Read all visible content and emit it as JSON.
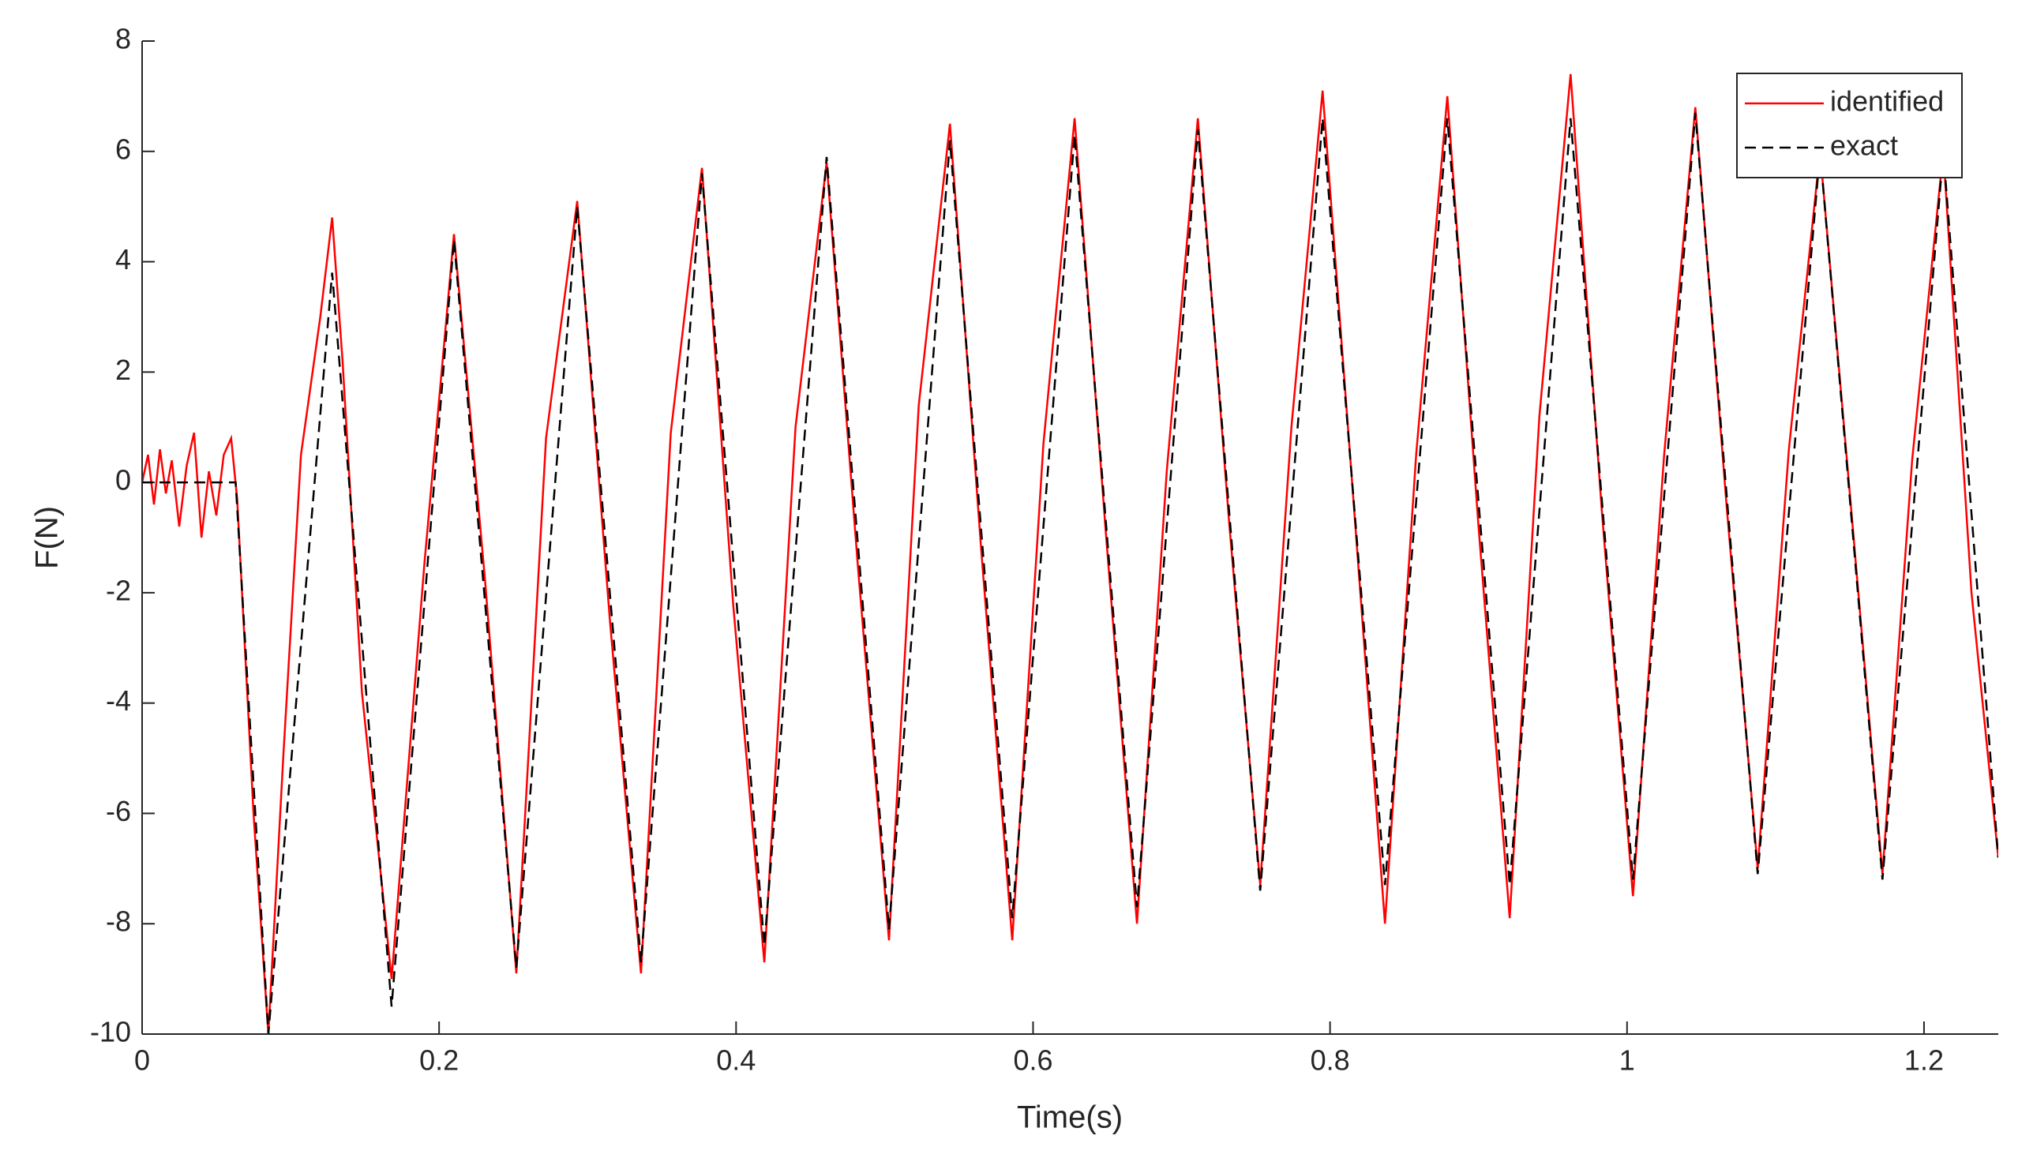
{
  "chart_data": {
    "type": "line",
    "xlabel": "Time(s)",
    "ylabel": "F(N)",
    "xlim": [
      0,
      1.25
    ],
    "xticks": [
      0,
      0.2,
      0.4,
      0.6,
      0.8,
      1,
      1.2
    ],
    "ylim": [
      -10,
      8
    ],
    "yticks": [
      -10,
      -8,
      -6,
      -4,
      -2,
      0,
      2,
      4,
      6,
      8
    ],
    "grid": false,
    "legend": "upper right",
    "series": [
      {
        "name": "identified",
        "color": "#ff0000",
        "dash": "solid",
        "x": [
          0,
          0.004,
          0.008,
          0.012,
          0.016,
          0.02,
          0.025,
          0.03,
          0.035,
          0.04,
          0.045,
          0.05,
          0.055,
          0.06,
          0.064,
          0.075,
          0.085,
          0.095,
          0.107,
          0.12,
          0.128,
          0.135,
          0.148,
          0.168,
          0.19,
          0.21,
          0.231,
          0.252,
          0.272,
          0.293,
          0.315,
          0.336,
          0.356,
          0.377,
          0.398,
          0.419,
          0.44,
          0.461,
          0.482,
          0.503,
          0.523,
          0.544,
          0.565,
          0.586,
          0.607,
          0.628,
          0.649,
          0.67,
          0.69,
          0.711,
          0.732,
          0.753,
          0.774,
          0.795,
          0.816,
          0.837,
          0.858,
          0.879,
          0.9,
          0.921,
          0.941,
          0.962,
          0.983,
          1.004,
          1.025,
          1.046,
          1.067,
          1.088,
          1.109,
          1.13,
          1.151,
          1.172,
          1.192,
          1.213,
          1.232,
          1.25
        ],
        "values": [
          0,
          0.5,
          -0.4,
          0.6,
          -0.2,
          0.4,
          -0.8,
          0.3,
          0.9,
          -1.0,
          0.2,
          -0.6,
          0.5,
          0.8,
          -0.3,
          -6,
          -10,
          -5,
          0.5,
          3.0,
          4.8,
          2.2,
          -3.8,
          -9.0,
          -1.5,
          4.5,
          -1.8,
          -8.9,
          0.8,
          5.1,
          -2.5,
          -8.9,
          0.9,
          5.7,
          -2.2,
          -8.7,
          1.0,
          5.8,
          -1.5,
          -8.3,
          1.4,
          6.5,
          -1.2,
          -8.3,
          0.7,
          6.6,
          -0.9,
          -8.0,
          0.2,
          6.6,
          -0.7,
          -7.3,
          1.0,
          7.1,
          -0.4,
          -8.0,
          0.5,
          7.0,
          -0.8,
          -7.9,
          1.2,
          7.4,
          -0.5,
          -7.5,
          0.5,
          6.8,
          -0.4,
          -7.0,
          0.6,
          6.0,
          -0.5,
          -7.1,
          0.4,
          6.0,
          -2.0,
          -6.8
        ]
      },
      {
        "name": "exact",
        "color": "#000000",
        "dash": "dashed",
        "x": [
          0,
          0.063,
          0.085,
          0.128,
          0.168,
          0.21,
          0.252,
          0.293,
          0.336,
          0.377,
          0.419,
          0.461,
          0.503,
          0.544,
          0.586,
          0.628,
          0.67,
          0.711,
          0.753,
          0.795,
          0.837,
          0.879,
          0.921,
          0.962,
          1.004,
          1.046,
          1.088,
          1.13,
          1.172,
          1.213,
          1.25
        ],
        "values": [
          0,
          0,
          -10,
          3.8,
          -9.5,
          4.4,
          -8.8,
          5.0,
          -8.7,
          5.6,
          -8.4,
          5.9,
          -8.1,
          6.2,
          -7.9,
          6.3,
          -7.7,
          6.4,
          -7.4,
          6.6,
          -7.3,
          6.6,
          -7.3,
          6.6,
          -7.2,
          6.7,
          -7.1,
          6.0,
          -7.2,
          6.0,
          -6.8
        ]
      }
    ]
  }
}
